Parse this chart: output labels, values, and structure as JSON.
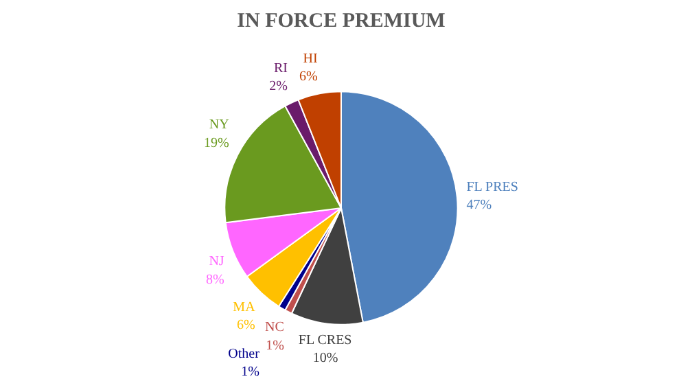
{
  "chart_data": {
    "type": "pie",
    "title": "IN FORCE PREMIUM",
    "categories": [
      "FL PRES",
      "FL CRES",
      "NC",
      "Other",
      "MA",
      "NJ",
      "NY",
      "RI",
      "HI"
    ],
    "values": [
      47,
      10,
      1,
      1,
      6,
      8,
      19,
      2,
      6
    ],
    "value_labels": [
      "47%",
      "10%",
      "1%",
      "1%",
      "6%",
      "8%",
      "19%",
      "2%",
      "6%"
    ],
    "colors": [
      "#4f81bd",
      "#404040",
      "#c0504d",
      "#00008b",
      "#ffc000",
      "#ff66ff",
      "#6a9a1f",
      "#6a1b6a",
      "#c04000"
    ]
  }
}
